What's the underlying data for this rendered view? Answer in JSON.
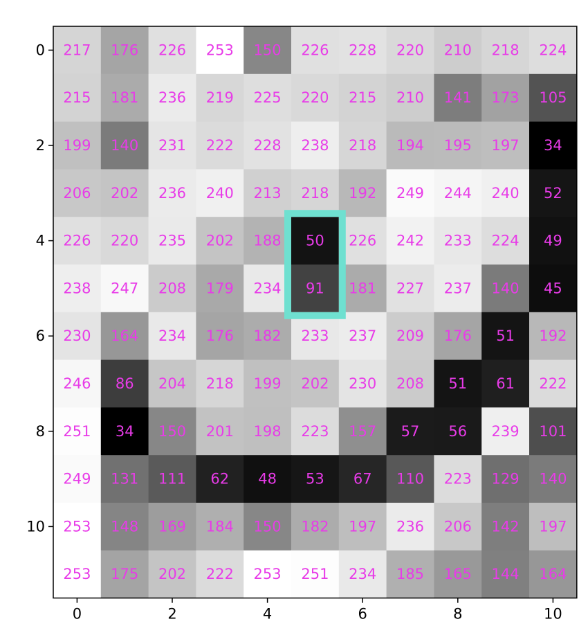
{
  "chart_data": {
    "type": "heatmap",
    "title": "",
    "xlabel": "",
    "ylabel": "",
    "colormap": "gray",
    "value_range": [
      0,
      255
    ],
    "label_color": "#e83be8",
    "highlight_color": "#6fe0d0",
    "x_ticks": [
      0,
      2,
      4,
      6,
      8,
      10
    ],
    "y_ticks": [
      0,
      2,
      4,
      6,
      8,
      10
    ],
    "highlight": {
      "col": 5,
      "row_start": 4,
      "row_end": 5
    },
    "values": [
      [
        217,
        176,
        226,
        253,
        150,
        226,
        228,
        220,
        210,
        218,
        224
      ],
      [
        215,
        181,
        236,
        219,
        225,
        220,
        215,
        210,
        141,
        173,
        105
      ],
      [
        199,
        140,
        231,
        222,
        228,
        238,
        218,
        194,
        195,
        197,
        34
      ],
      [
        206,
        202,
        236,
        240,
        213,
        218,
        192,
        249,
        244,
        240,
        52
      ],
      [
        226,
        220,
        235,
        202,
        188,
        50,
        226,
        242,
        233,
        224,
        49
      ],
      [
        238,
        247,
        208,
        179,
        234,
        91,
        181,
        227,
        237,
        140,
        45
      ],
      [
        230,
        164,
        234,
        176,
        182,
        233,
        237,
        209,
        176,
        51,
        192
      ],
      [
        246,
        86,
        204,
        218,
        199,
        202,
        230,
        208,
        51,
        61,
        222
      ],
      [
        251,
        34,
        150,
        201,
        198,
        223,
        157,
        57,
        56,
        239,
        101
      ],
      [
        249,
        131,
        111,
        62,
        48,
        53,
        67,
        110,
        223,
        129,
        140
      ],
      [
        253,
        148,
        169,
        184,
        150,
        182,
        197,
        236,
        206,
        142,
        197
      ],
      [
        253,
        175,
        202,
        222,
        253,
        251,
        234,
        185,
        165,
        144,
        164
      ]
    ]
  }
}
